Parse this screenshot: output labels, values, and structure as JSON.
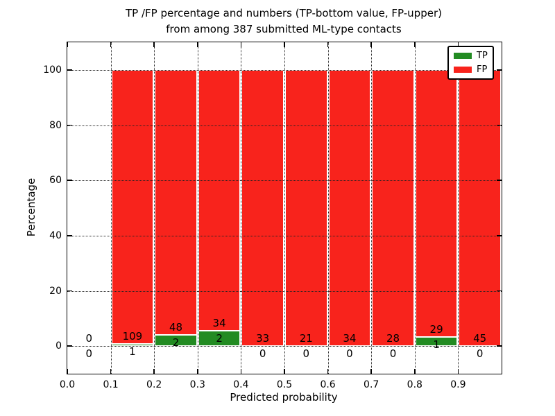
{
  "title": {
    "line1": "TP /FP percentage and numbers (TP-bottom value, FP-upper)",
    "line2": "from among 387 submitted ML-type contacts"
  },
  "axes": {
    "xlabel": "Predicted probability",
    "ylabel": "Percentage",
    "xtick_labels": [
      "0.0",
      "0.1",
      "0.2",
      "0.3",
      "0.4",
      "0.5",
      "0.6",
      "0.7",
      "0.8",
      "0.9"
    ],
    "ytick_labels": [
      "0",
      "20",
      "40",
      "60",
      "80",
      "100"
    ]
  },
  "legend": [
    {
      "label": "TP",
      "color": "#228b22"
    },
    {
      "label": "FP",
      "color": "#f8231c"
    }
  ],
  "colors": {
    "tp": "#228b22",
    "fp": "#f8231c",
    "bar_edge": "#ffffff",
    "grid": "#222222"
  },
  "chart_data": {
    "type": "bar",
    "stacked": true,
    "percentage_normalized": true,
    "title": "TP /FP percentage and numbers (TP-bottom value, FP-upper) from among 387 submitted ML-type contacts",
    "xlabel": "Predicted probability",
    "ylabel": "Percentage",
    "xlim": [
      0,
      1
    ],
    "ylim": [
      -10,
      110
    ],
    "yticks": [
      0,
      20,
      40,
      60,
      80,
      100
    ],
    "xticks": [
      0.0,
      0.1,
      0.2,
      0.3,
      0.4,
      0.5,
      0.6,
      0.7,
      0.8,
      0.9
    ],
    "grid": "dotted",
    "legend_position": "upper-right",
    "total_contacts": 387,
    "series": [
      {
        "name": "TP",
        "color": "#228b22",
        "counts": [
          0,
          1,
          2,
          2,
          0,
          0,
          0,
          0,
          1,
          0
        ]
      },
      {
        "name": "FP",
        "color": "#f8231c",
        "counts": [
          0,
          109,
          48,
          34,
          33,
          21,
          34,
          28,
          29,
          45
        ]
      }
    ],
    "bins": [
      {
        "x_start": 0.0,
        "x_end": 0.1,
        "tp": 0,
        "fp": 0
      },
      {
        "x_start": 0.1,
        "x_end": 0.2,
        "tp": 1,
        "fp": 109
      },
      {
        "x_start": 0.2,
        "x_end": 0.3,
        "tp": 2,
        "fp": 48
      },
      {
        "x_start": 0.3,
        "x_end": 0.4,
        "tp": 2,
        "fp": 34
      },
      {
        "x_start": 0.4,
        "x_end": 0.5,
        "tp": 0,
        "fp": 33
      },
      {
        "x_start": 0.5,
        "x_end": 0.6,
        "tp": 0,
        "fp": 21
      },
      {
        "x_start": 0.6,
        "x_end": 0.7,
        "tp": 0,
        "fp": 34
      },
      {
        "x_start": 0.7,
        "x_end": 0.8,
        "tp": 0,
        "fp": 28
      },
      {
        "x_start": 0.8,
        "x_end": 0.9,
        "tp": 1,
        "fp": 29
      },
      {
        "x_start": 0.9,
        "x_end": 1.0,
        "tp": 0,
        "fp": 45
      }
    ]
  }
}
